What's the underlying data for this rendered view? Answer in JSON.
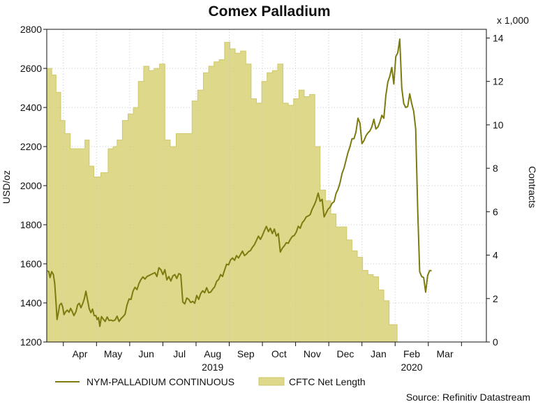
{
  "chart_data": {
    "type": "line",
    "title": "Comex Palladium",
    "ylabel": "USD/oz",
    "y2label": "Contracts",
    "y2_multiplier_label": "x 1,000",
    "ylim": [
      1200,
      2800
    ],
    "y2lim": [
      0,
      14.4
    ],
    "yticks": [
      1200,
      1400,
      1600,
      1800,
      2000,
      2200,
      2400,
      2600,
      2800
    ],
    "y2ticks": [
      0,
      2,
      4,
      6,
      8,
      10,
      12,
      14
    ],
    "xlim": [
      0,
      13.25
    ],
    "month_labels": [
      "Apr",
      "May",
      "Jun",
      "Jul",
      "Aug",
      "Sep",
      "Oct",
      "Nov",
      "Dec",
      "Jan",
      "Feb",
      "Mar"
    ],
    "month_label_positions": [
      1,
      2,
      3,
      4,
      5,
      6,
      7,
      8,
      9,
      10,
      11,
      12
    ],
    "month_tick_positions": [
      0.5,
      1.5,
      2.5,
      3.5,
      4.5,
      5.5,
      6.5,
      7.5,
      8.5,
      9.5,
      10.5,
      11.5,
      12.5
    ],
    "year_labels": [
      {
        "label": "2019",
        "position": 5
      },
      {
        "label": "2020",
        "position": 11
      }
    ],
    "legend": {
      "placement": "bottom-left",
      "items": [
        {
          "label": "NYM-PALLADIUM CONTINUOUS",
          "kind": "line"
        },
        {
          "label": "CFTC Net Length",
          "kind": "area"
        }
      ]
    },
    "source": "Source: Refinitiv Datastream",
    "colors": {
      "line": "#7d7b10",
      "area": "#ded98a",
      "area_stroke": "#cfc86a",
      "grid": "#c8c8c8"
    },
    "series": [
      {
        "name": "CFTC Net Length",
        "axis": "right",
        "kind": "step-area",
        "points": [
          [
            0.0,
            12.6
          ],
          [
            0.15,
            12.3
          ],
          [
            0.28,
            11.5
          ],
          [
            0.42,
            10.2
          ],
          [
            0.55,
            9.6
          ],
          [
            0.71,
            8.9
          ],
          [
            0.94,
            8.9
          ],
          [
            1.15,
            9.3
          ],
          [
            1.28,
            8.1
          ],
          [
            1.42,
            7.6
          ],
          [
            1.63,
            7.8
          ],
          [
            1.85,
            8.9
          ],
          [
            2.0,
            9.0
          ],
          [
            2.12,
            9.3
          ],
          [
            2.28,
            10.2
          ],
          [
            2.45,
            10.5
          ],
          [
            2.61,
            10.8
          ],
          [
            2.76,
            12.0
          ],
          [
            2.92,
            12.7
          ],
          [
            3.08,
            12.5
          ],
          [
            3.24,
            12.6
          ],
          [
            3.4,
            12.8
          ],
          [
            3.56,
            9.3
          ],
          [
            3.72,
            9.0
          ],
          [
            3.9,
            9.6
          ],
          [
            4.06,
            9.6
          ],
          [
            4.22,
            9.6
          ],
          [
            4.38,
            11.1
          ],
          [
            4.55,
            11.6
          ],
          [
            4.72,
            12.4
          ],
          [
            4.88,
            12.7
          ],
          [
            5.04,
            12.9
          ],
          [
            5.2,
            13.0
          ],
          [
            5.36,
            13.8
          ],
          [
            5.52,
            13.5
          ],
          [
            5.68,
            13.3
          ],
          [
            5.84,
            13.4
          ],
          [
            6.0,
            12.8
          ],
          [
            6.16,
            11.2
          ],
          [
            6.32,
            11.0
          ],
          [
            6.48,
            12.0
          ],
          [
            6.64,
            12.4
          ],
          [
            6.8,
            12.5
          ],
          [
            6.96,
            12.8
          ],
          [
            7.12,
            11.0
          ],
          [
            7.28,
            10.9
          ],
          [
            7.44,
            11.2
          ],
          [
            7.6,
            11.6
          ],
          [
            7.76,
            11.3
          ],
          [
            7.92,
            11.4
          ],
          [
            8.08,
            9.0
          ],
          [
            8.24,
            7.0
          ],
          [
            8.4,
            6.5
          ],
          [
            8.56,
            5.9
          ],
          [
            8.72,
            5.3
          ],
          [
            8.88,
            5.3
          ],
          [
            9.04,
            4.7
          ],
          [
            9.2,
            4.2
          ],
          [
            9.36,
            3.9
          ],
          [
            9.52,
            3.3
          ],
          [
            9.68,
            3.1
          ],
          [
            9.84,
            3.0
          ],
          [
            10.0,
            2.4
          ],
          [
            10.16,
            1.9
          ],
          [
            10.32,
            0.8
          ],
          [
            10.48,
            0.8
          ]
        ]
      },
      {
        "name": "NYM-PALLADIUM CONTINUOUS",
        "axis": "left",
        "kind": "line",
        "points": [
          [
            0.0,
            1565
          ],
          [
            0.06,
            1560
          ],
          [
            0.1,
            1530
          ],
          [
            0.15,
            1560
          ],
          [
            0.2,
            1545
          ],
          [
            0.24,
            1500
          ],
          [
            0.28,
            1400
          ],
          [
            0.31,
            1315
          ],
          [
            0.35,
            1350
          ],
          [
            0.39,
            1390
          ],
          [
            0.44,
            1398
          ],
          [
            0.48,
            1380
          ],
          [
            0.52,
            1340
          ],
          [
            0.57,
            1355
          ],
          [
            0.62,
            1363
          ],
          [
            0.67,
            1352
          ],
          [
            0.72,
            1372
          ],
          [
            0.77,
            1355
          ],
          [
            0.82,
            1335
          ],
          [
            0.88,
            1355
          ],
          [
            0.93,
            1390
          ],
          [
            0.98,
            1398
          ],
          [
            1.03,
            1375
          ],
          [
            1.08,
            1395
          ],
          [
            1.13,
            1420
          ],
          [
            1.18,
            1460
          ],
          [
            1.23,
            1415
          ],
          [
            1.28,
            1370
          ],
          [
            1.33,
            1350
          ],
          [
            1.38,
            1368
          ],
          [
            1.43,
            1335
          ],
          [
            1.48,
            1335
          ],
          [
            1.52,
            1315
          ],
          [
            1.56,
            1325
          ],
          [
            1.6,
            1280
          ],
          [
            1.65,
            1330
          ],
          [
            1.7,
            1318
          ],
          [
            1.76,
            1305
          ],
          [
            1.82,
            1328
          ],
          [
            1.88,
            1310
          ],
          [
            1.94,
            1312
          ],
          [
            2.0,
            1308
          ],
          [
            2.06,
            1313
          ],
          [
            2.12,
            1332
          ],
          [
            2.18,
            1305
          ],
          [
            2.24,
            1320
          ],
          [
            2.3,
            1330
          ],
          [
            2.36,
            1342
          ],
          [
            2.42,
            1390
          ],
          [
            2.48,
            1420
          ],
          [
            2.54,
            1418
          ],
          [
            2.6,
            1460
          ],
          [
            2.66,
            1480
          ],
          [
            2.72,
            1468
          ],
          [
            2.78,
            1500
          ],
          [
            2.84,
            1520
          ],
          [
            2.9,
            1533
          ],
          [
            2.96,
            1522
          ],
          [
            3.02,
            1535
          ],
          [
            3.08,
            1540
          ],
          [
            3.14,
            1545
          ],
          [
            3.2,
            1550
          ],
          [
            3.26,
            1555
          ],
          [
            3.32,
            1535
          ],
          [
            3.38,
            1580
          ],
          [
            3.44,
            1570
          ],
          [
            3.5,
            1545
          ],
          [
            3.56,
            1570
          ],
          [
            3.62,
            1518
          ],
          [
            3.68,
            1535
          ],
          [
            3.74,
            1512
          ],
          [
            3.8,
            1538
          ],
          [
            3.86,
            1545
          ],
          [
            3.92,
            1525
          ],
          [
            3.98,
            1550
          ],
          [
            4.04,
            1545
          ],
          [
            4.1,
            1405
          ],
          [
            4.16,
            1395
          ],
          [
            4.22,
            1425
          ],
          [
            4.28,
            1418
          ],
          [
            4.34,
            1402
          ],
          [
            4.4,
            1408
          ],
          [
            4.46,
            1398
          ],
          [
            4.52,
            1438
          ],
          [
            4.58,
            1418
          ],
          [
            4.64,
            1448
          ],
          [
            4.7,
            1462
          ],
          [
            4.76,
            1452
          ],
          [
            4.82,
            1478
          ],
          [
            4.88,
            1452
          ],
          [
            4.94,
            1455
          ],
          [
            5.0,
            1470
          ],
          [
            5.06,
            1482
          ],
          [
            5.12,
            1510
          ],
          [
            5.18,
            1520
          ],
          [
            5.24,
            1545
          ],
          [
            5.3,
            1535
          ],
          [
            5.36,
            1568
          ],
          [
            5.42,
            1598
          ],
          [
            5.48,
            1595
          ],
          [
            5.54,
            1620
          ],
          [
            5.6,
            1630
          ],
          [
            5.66,
            1618
          ],
          [
            5.72,
            1642
          ],
          [
            5.78,
            1630
          ],
          [
            5.84,
            1648
          ],
          [
            5.9,
            1665
          ],
          [
            5.96,
            1642
          ],
          [
            6.02,
            1650
          ],
          [
            6.08,
            1662
          ],
          [
            6.14,
            1668
          ],
          [
            6.2,
            1685
          ],
          [
            6.26,
            1698
          ],
          [
            6.32,
            1720
          ],
          [
            6.38,
            1742
          ],
          [
            6.44,
            1725
          ],
          [
            6.5,
            1745
          ],
          [
            6.56,
            1770
          ],
          [
            6.62,
            1792
          ],
          [
            6.68,
            1765
          ],
          [
            6.74,
            1782
          ],
          [
            6.8,
            1755
          ],
          [
            6.86,
            1778
          ],
          [
            6.92,
            1742
          ],
          [
            6.98,
            1755
          ],
          [
            7.04,
            1660
          ],
          [
            7.1,
            1680
          ],
          [
            7.16,
            1692
          ],
          [
            7.22,
            1708
          ],
          [
            7.28,
            1705
          ],
          [
            7.34,
            1725
          ],
          [
            7.4,
            1740
          ],
          [
            7.46,
            1745
          ],
          [
            7.52,
            1762
          ],
          [
            7.58,
            1792
          ],
          [
            7.64,
            1782
          ],
          [
            7.7,
            1810
          ],
          [
            7.76,
            1822
          ],
          [
            7.82,
            1840
          ],
          [
            7.88,
            1845
          ],
          [
            7.94,
            1852
          ],
          [
            8.0,
            1880
          ],
          [
            8.06,
            1900
          ],
          [
            8.12,
            1925
          ],
          [
            8.18,
            1962
          ],
          [
            8.24,
            1920
          ],
          [
            8.3,
            1930
          ],
          [
            8.36,
            1840
          ],
          [
            8.42,
            1860
          ],
          [
            8.48,
            1880
          ],
          [
            8.54,
            1890
          ],
          [
            8.6,
            1910
          ],
          [
            8.66,
            1918
          ],
          [
            8.72,
            1960
          ],
          [
            8.78,
            1982
          ],
          [
            8.84,
            2015
          ],
          [
            8.9,
            2062
          ],
          [
            8.96,
            2090
          ],
          [
            9.02,
            2130
          ],
          [
            9.08,
            2170
          ],
          [
            9.14,
            2200
          ],
          [
            9.2,
            2240
          ],
          [
            9.26,
            2240
          ],
          [
            9.32,
            2275
          ],
          [
            9.38,
            2345
          ],
          [
            9.44,
            2320
          ],
          [
            9.5,
            2215
          ],
          [
            9.56,
            2230
          ],
          [
            9.62,
            2255
          ],
          [
            9.68,
            2270
          ],
          [
            9.74,
            2280
          ],
          [
            9.8,
            2302
          ],
          [
            9.86,
            2340
          ],
          [
            9.92,
            2290
          ],
          [
            9.98,
            2300
          ],
          [
            10.04,
            2325
          ],
          [
            10.1,
            2360
          ],
          [
            10.16,
            2345
          ],
          [
            10.22,
            2460
          ],
          [
            10.28,
            2530
          ],
          [
            10.34,
            2560
          ],
          [
            10.4,
            2605
          ],
          [
            10.46,
            2520
          ],
          [
            10.52,
            2660
          ],
          [
            10.58,
            2680
          ],
          [
            10.64,
            2750
          ],
          [
            10.7,
            2500
          ],
          [
            10.76,
            2420
          ],
          [
            10.82,
            2400
          ],
          [
            10.88,
            2405
          ],
          [
            10.94,
            2470
          ],
          [
            11.0,
            2420
          ],
          [
            11.06,
            2380
          ],
          [
            11.12,
            2290
          ],
          [
            11.18,
            1880
          ],
          [
            11.24,
            1560
          ],
          [
            11.3,
            1535
          ],
          [
            11.36,
            1530
          ],
          [
            11.42,
            1455
          ],
          [
            11.48,
            1540
          ],
          [
            11.54,
            1565
          ],
          [
            11.6,
            1565
          ]
        ]
      }
    ]
  }
}
